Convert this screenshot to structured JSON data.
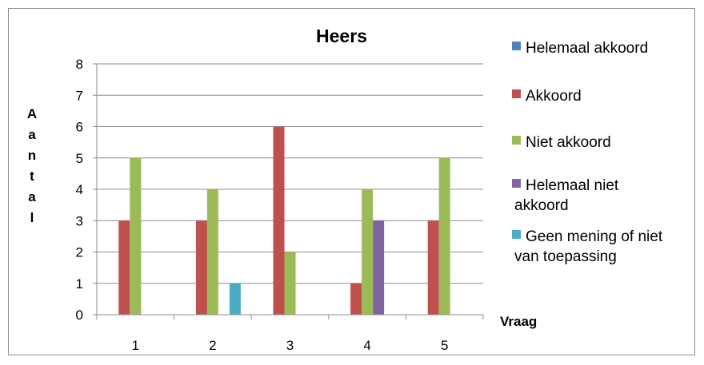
{
  "chart_data": {
    "type": "bar",
    "title": "Heers",
    "xlabel": "Vraag",
    "ylabel": "Aantal",
    "categories": [
      "1",
      "2",
      "3",
      "4",
      "5"
    ],
    "ylim": [
      0,
      8
    ],
    "yticks": [
      "0",
      "1",
      "2",
      "3",
      "4",
      "5",
      "6",
      "7",
      "8"
    ],
    "grid": true,
    "legend_position": "right",
    "series": [
      {
        "name": "Helemaal akkoord",
        "color": "#4f81bd",
        "values": [
          0,
          0,
          0,
          0,
          0
        ]
      },
      {
        "name": "Akkoord",
        "color": "#c0504d",
        "values": [
          3,
          3,
          6,
          1,
          3
        ]
      },
      {
        "name": "Niet akkoord",
        "color": "#9bbb59",
        "values": [
          5,
          4,
          2,
          4,
          5
        ]
      },
      {
        "name": "Helemaal niet akkoord",
        "color": "#8064a2",
        "values": [
          0,
          0,
          0,
          3,
          0
        ]
      },
      {
        "name": "Geen mening of niet van toepassing",
        "color": "#4bacc6",
        "values": [
          0,
          1,
          0,
          0,
          0
        ]
      }
    ]
  }
}
